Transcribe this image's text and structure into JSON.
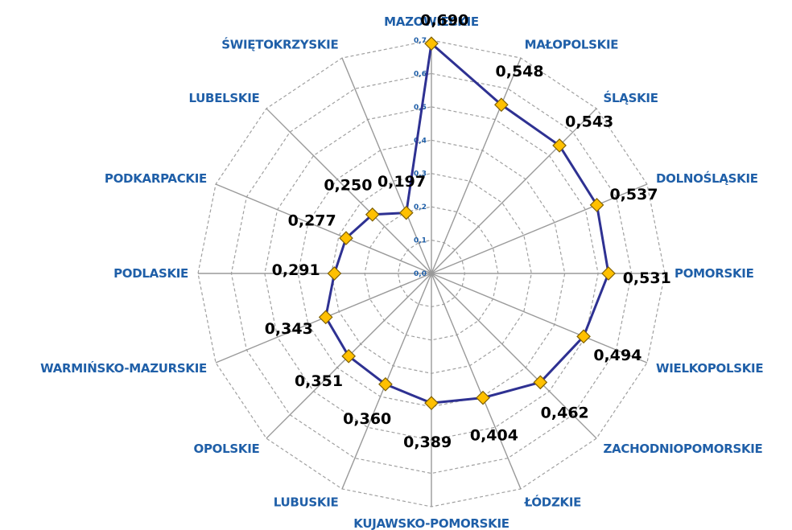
{
  "chart_data": {
    "type": "radar",
    "categories": [
      "MAZOWIECKIE",
      "MAŁOPOLSKIE",
      "ŚLĄSKIE",
      "DOLNOŚLĄSKIE",
      "POMORSKIE",
      "WIELKOPOLSKIE",
      "ZACHODNIOPOMORSKIE",
      "ŁÓDZKIE",
      "KUJAWSKO-POMORSKIE",
      "LUBUSKIE",
      "OPOLSKIE",
      "WARMIŃSKO-MAZURSKIE",
      "PODLASKIE",
      "PODKARPACKIE",
      "LUBELSKIE",
      "ŚWIĘTOKRZYSKIE"
    ],
    "values": [
      0.69,
      0.548,
      0.543,
      0.537,
      0.531,
      0.494,
      0.462,
      0.404,
      0.389,
      0.36,
      0.351,
      0.343,
      0.291,
      0.277,
      0.25,
      0.197
    ],
    "value_labels": [
      "0,690",
      "0,548",
      "0,543",
      "0,537",
      "0,531",
      "0,494",
      "0,462",
      "0,404",
      "0,389",
      "0,360",
      "0,351",
      "0,343",
      "0,291",
      "0,277",
      "0,250",
      "0,197"
    ],
    "ticks": [
      0.0,
      0.1,
      0.2,
      0.3,
      0.4,
      0.5,
      0.6,
      0.7
    ],
    "tick_labels": [
      "0,0",
      "0,1",
      "0,2",
      "0,3",
      "0,4",
      "0,5",
      "0,6",
      "0,7"
    ],
    "rlim": [
      0,
      0.7
    ],
    "grid": true,
    "colors": {
      "line": "#2e3192",
      "marker_fill": "#ffc000",
      "marker_stroke": "#7f6000",
      "spoke": "#9a9a9a",
      "grid": "#a0a0a0",
      "category_label": "#1f5fa8",
      "value_label": "#000000"
    }
  }
}
